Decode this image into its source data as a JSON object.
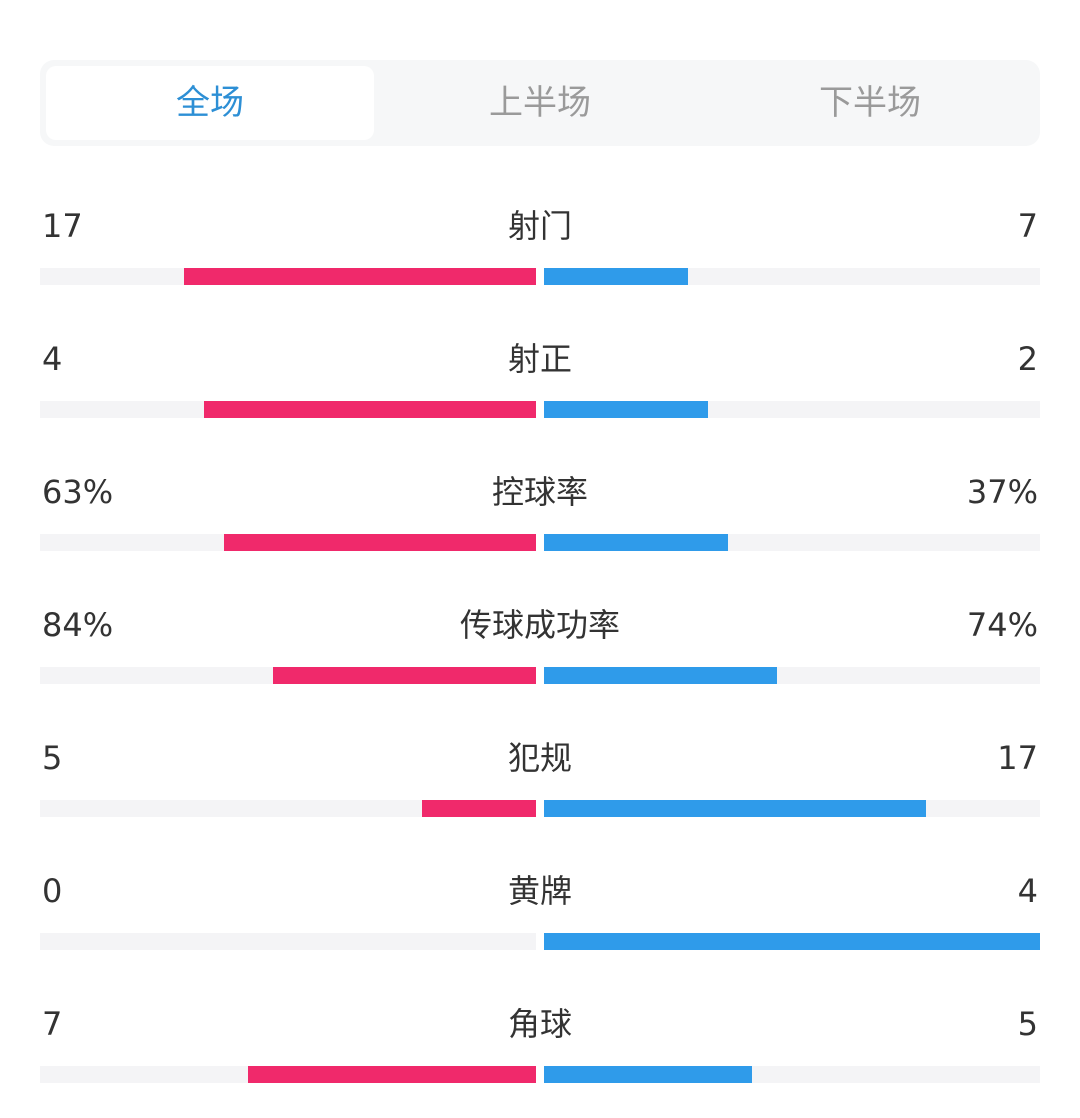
{
  "tabs": [
    {
      "label": "全场",
      "active": true
    },
    {
      "label": "上半场",
      "active": false
    },
    {
      "label": "下半场",
      "active": false
    }
  ],
  "colors": {
    "home": "#f0296b",
    "away": "#2f9bea",
    "active_tab": "#2d8fd5"
  },
  "stats": [
    {
      "label": "射门",
      "home": "17",
      "away": "7",
      "home_fraction": 0.71,
      "away_fraction": 0.29
    },
    {
      "label": "射正",
      "home": "4",
      "away": "2",
      "home_fraction": 0.67,
      "away_fraction": 0.33
    },
    {
      "label": "控球率",
      "home": "63%",
      "away": "37%",
      "home_fraction": 0.63,
      "away_fraction": 0.37
    },
    {
      "label": "传球成功率",
      "home": "84%",
      "away": "74%",
      "home_fraction": 0.53,
      "away_fraction": 0.47
    },
    {
      "label": "犯规",
      "home": "5",
      "away": "17",
      "home_fraction": 0.23,
      "away_fraction": 0.77
    },
    {
      "label": "黄牌",
      "home": "0",
      "away": "4",
      "home_fraction": 0.0,
      "away_fraction": 1.0
    },
    {
      "label": "角球",
      "home": "7",
      "away": "5",
      "home_fraction": 0.58,
      "away_fraction": 0.42
    }
  ]
}
